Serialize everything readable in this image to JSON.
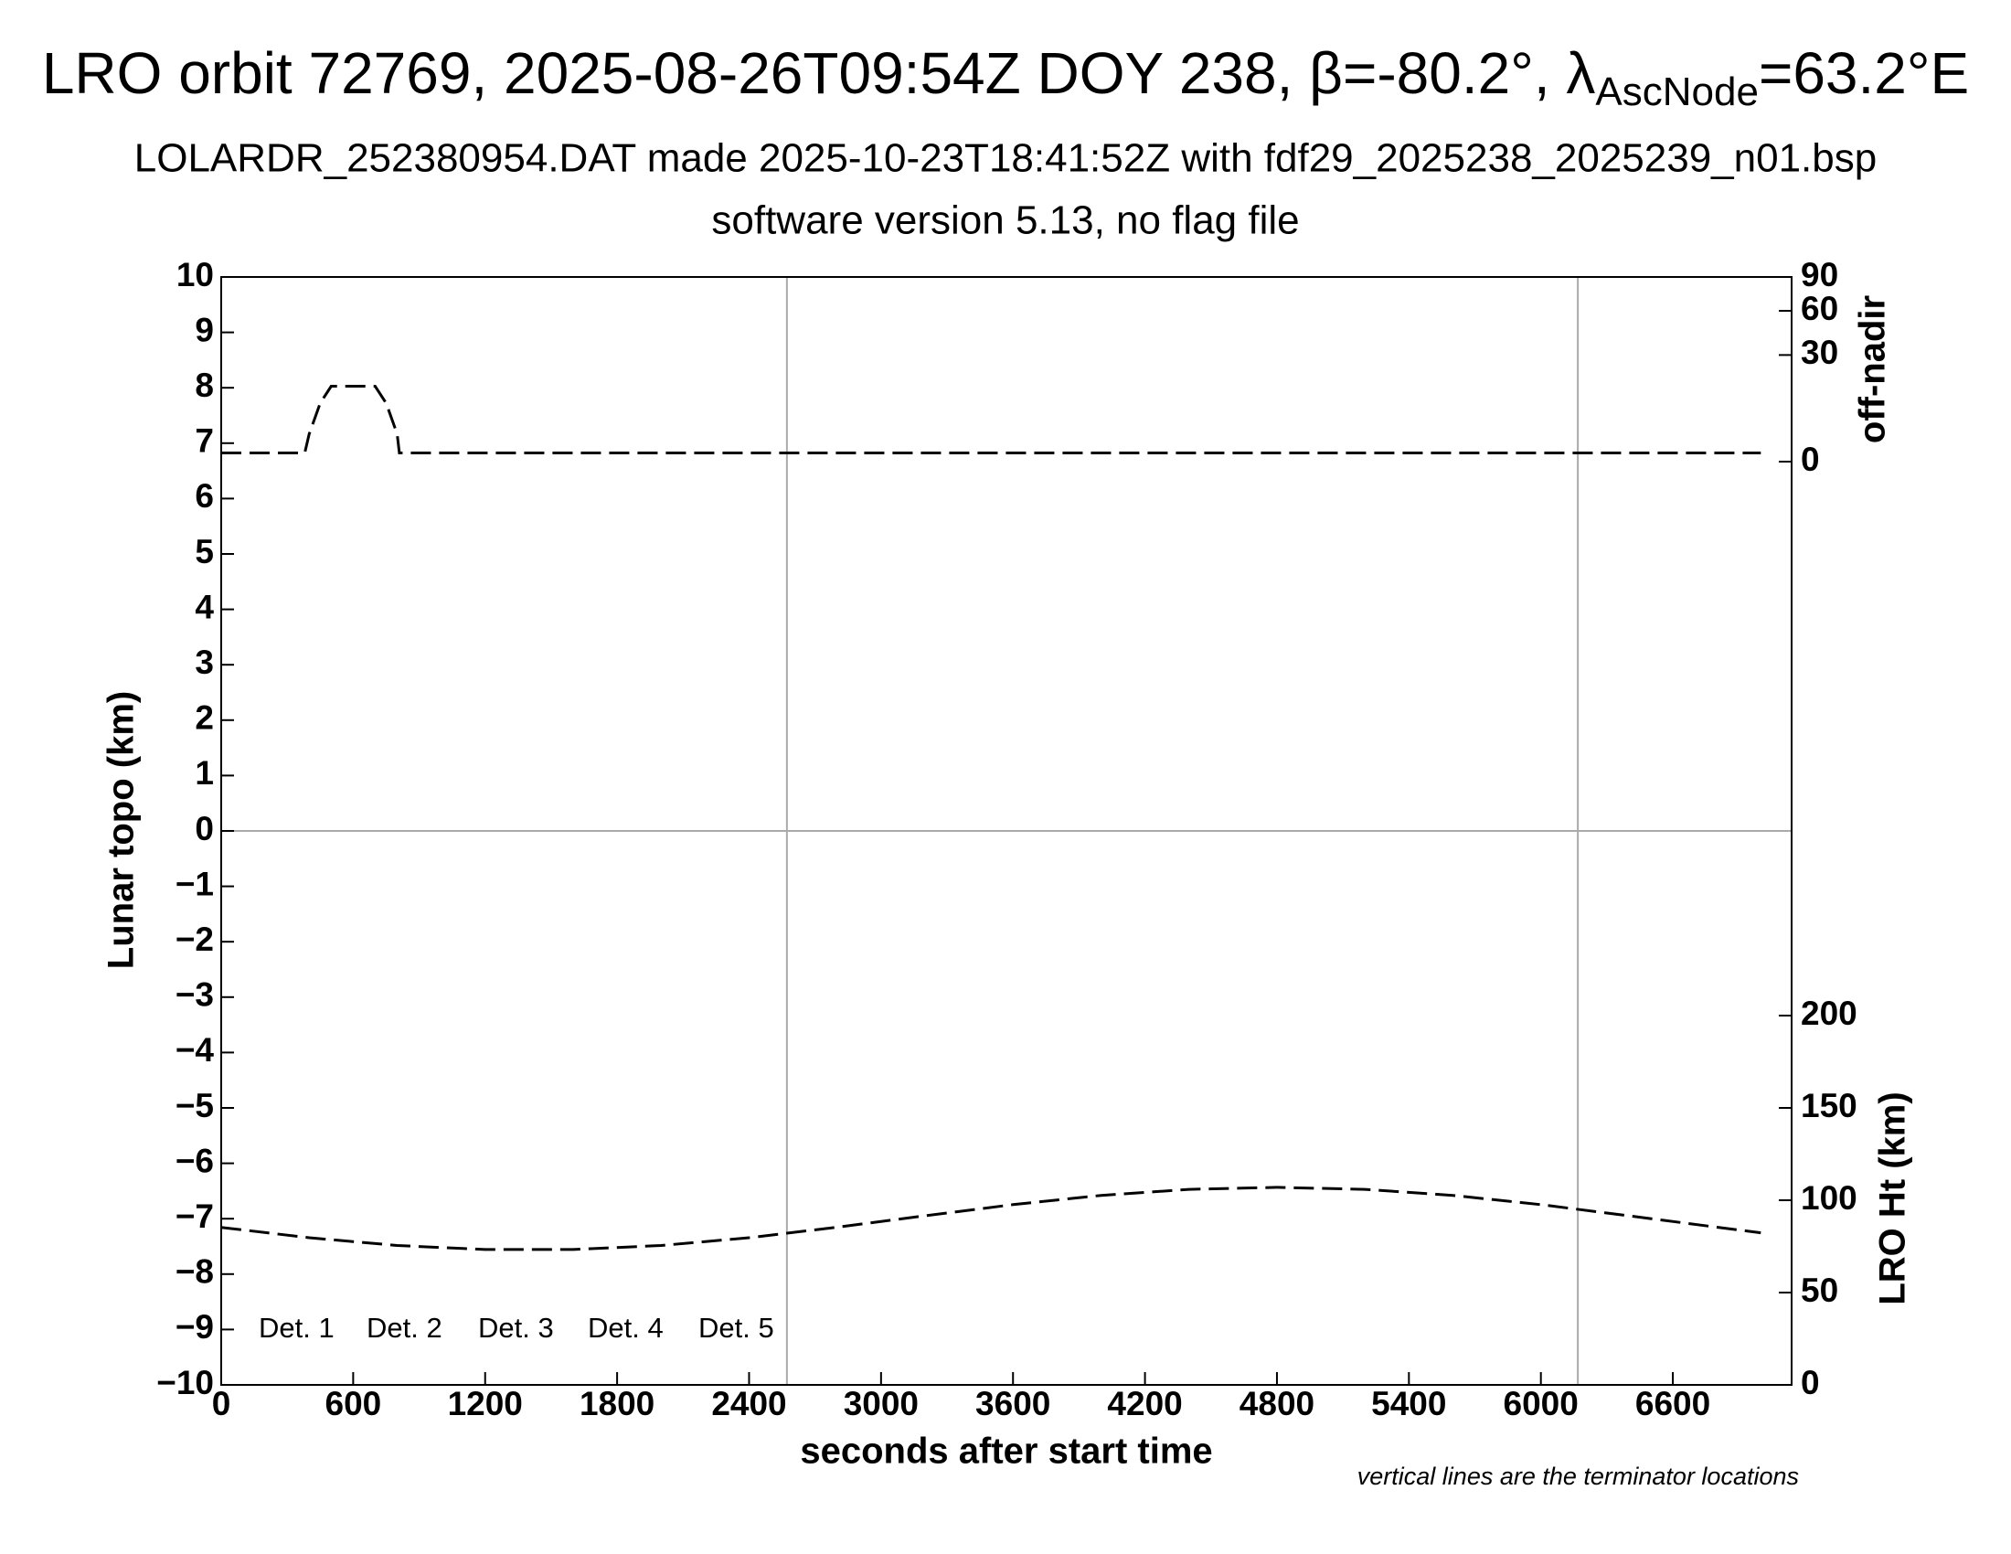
{
  "chart_data": {
    "type": "line",
    "title": "LRO orbit 72769, 2025-08-26T09:54Z DOY 238, β=-80.2°, λ",
    "title_subscript": "AscNode",
    "title_suffix": "=63.2°E",
    "subtitle": "LOLARDR_252380954.DAT made 2025-10-23T18:41:52Z with fdf29_2025238_2025239_n01.bsp",
    "subtitle2": "software version 5.13, no flag file",
    "x_label": "seconds after start time",
    "y_label": "Lunar topo (km)",
    "y2_label": "LRO Ht (km)",
    "y3_label": "off-nadir",
    "annotation": "vertical lines are the terminator locations",
    "xlim": [
      0,
      7140
    ],
    "xticks": [
      0,
      600,
      1200,
      1800,
      2400,
      3000,
      3600,
      4200,
      4800,
      5400,
      6000,
      6600
    ],
    "ylim": [
      -10,
      10
    ],
    "yticks": [
      {
        "value": -10,
        "label": "−10"
      },
      {
        "value": -9,
        "label": "−9"
      },
      {
        "value": -8,
        "label": "−8"
      },
      {
        "value": -7,
        "label": "−7"
      },
      {
        "value": -6,
        "label": "−6"
      },
      {
        "value": -5,
        "label": "−5"
      },
      {
        "value": -4,
        "label": "−4"
      },
      {
        "value": -3,
        "label": "−3"
      },
      {
        "value": -2,
        "label": "−2"
      },
      {
        "value": -1,
        "label": "−1"
      },
      0,
      1,
      2,
      3,
      4,
      5,
      6,
      7,
      8,
      9,
      10
    ],
    "y2lim": [
      0,
      600
    ],
    "y2ticks": [
      0,
      50,
      100,
      150,
      200
    ],
    "y3lim": [
      0,
      90
    ],
    "y3scale": "sqrt",
    "y3ticks": [
      0,
      30,
      60,
      90
    ],
    "zero_line": true,
    "vlines": [
      2572,
      6168
    ],
    "vline_color": "#aaaaaa",
    "legend": [
      {
        "name": "Det. 1",
        "color": "#000000"
      },
      {
        "name": "Det. 2",
        "color": "#0000ff"
      },
      {
        "name": "Det. 3",
        "color": "#00ee00"
      },
      {
        "name": "Det. 4",
        "color": "#ffa500"
      },
      {
        "name": "Det. 5",
        "color": "#ff0000"
      }
    ],
    "series": [
      {
        "axis": "y3",
        "color": "#000000",
        "x": [
          0,
          380,
          400,
          450,
          500,
          600,
          700,
          750,
          800,
          810,
          7000
        ],
        "values": [
          0.2,
          0.2,
          2,
          9,
          15,
          15,
          15,
          9,
          2,
          0.2,
          0.2
        ]
      },
      {
        "axis": "y2",
        "color": "#000000",
        "x": [
          0,
          400,
          800,
          1200,
          1600,
          2000,
          2400,
          2800,
          3200,
          3600,
          4000,
          4400,
          4800,
          5200,
          5600,
          6000,
          6400,
          6800,
          7000
        ],
        "values": [
          85.3,
          79.7,
          75.5,
          73.3,
          73.3,
          75.5,
          79.7,
          85.4,
          91.6,
          97.6,
          102.6,
          105.9,
          107,
          105.9,
          102.6,
          97.6,
          91.6,
          85.4,
          82.4
        ]
      }
    ]
  }
}
